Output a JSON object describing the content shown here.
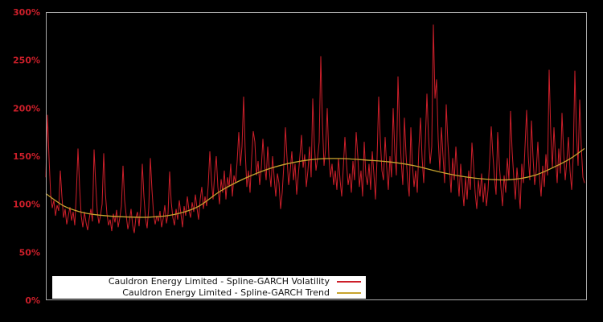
{
  "figure": {
    "background": "#000000",
    "plot_border_color": "#a9a9a9"
  },
  "chart_data": {
    "type": "line",
    "title": "",
    "xlabel": "",
    "ylabel": "",
    "grid": false,
    "y_axis": {
      "range": [
        0,
        300
      ],
      "tick_values": [
        0,
        50,
        100,
        150,
        200,
        250,
        300
      ],
      "tick_labels": [
        "0%",
        "50%",
        "100%",
        "150%",
        "200%",
        "250%",
        "300%"
      ],
      "label_color": "#cd1f2a"
    },
    "x_axis": {
      "tick_labels": []
    },
    "legend": {
      "position": "bottom-left",
      "background": "#ffffff",
      "entries": [
        {
          "label": "Cauldron Energy Limited - Spline-GARCH Volatility",
          "color": "#cd1f2a"
        },
        {
          "label": "Cauldron Energy Limited - Spline-GARCH Trend",
          "color": "#c8a42e"
        }
      ]
    },
    "series": [
      {
        "name": "Cauldron Energy Limited - Spline-GARCH Volatility",
        "style": "jagged-line",
        "color": "#cd1f2a",
        "unit": "%",
        "values": [
          128,
          193,
          148,
          110,
          96,
          104,
          88,
          99,
          93,
          135,
          108,
          86,
          95,
          79,
          88,
          97,
          83,
          92,
          78,
          112,
          158,
          118,
          88,
          76,
          92,
          81,
          73,
          85,
          95,
          82,
          157,
          122,
          92,
          80,
          88,
          100,
          153,
          112,
          90,
          78,
          84,
          72,
          90,
          81,
          94,
          76,
          86,
          98,
          140,
          104,
          88,
          74,
          82,
          95,
          78,
          70,
          86,
          92,
          77,
          98,
          142,
          108,
          85,
          75,
          96,
          148,
          115,
          90,
          79,
          88,
          82,
          93,
          76,
          85,
          99,
          80,
          90,
          134,
          102,
          86,
          78,
          95,
          84,
          104,
          90,
          76,
          98,
          88,
          108,
          94,
          86,
          102,
          92,
          110,
          96,
          84,
          105,
          118,
          95,
          108,
          98,
          120,
          155,
          125,
          105,
          132,
          150,
          118,
          100,
          126,
          112,
          135,
          105,
          128,
          118,
          142,
          108,
          130,
          122,
          145,
          175,
          140,
          160,
          212,
          155,
          118,
          135,
          112,
          148,
          176,
          165,
          130,
          145,
          120,
          138,
          168,
          142,
          125,
          160,
          135,
          118,
          150,
          128,
          108,
          132,
          122,
          95,
          112,
          140,
          180,
          148,
          120,
          135,
          155,
          125,
          142,
          110,
          130,
          150,
          172,
          138,
          152,
          118,
          135,
          160,
          128,
          210,
          162,
          135,
          148,
          165,
          254,
          185,
          140,
          158,
          200,
          150,
          128,
          142,
          120,
          135,
          115,
          148,
          125,
          108,
          138,
          170,
          142,
          120,
          132,
          112,
          145,
          125,
          175,
          150,
          118,
          135,
          108,
          165,
          130,
          120,
          142,
          115,
          155,
          132,
          105,
          148,
          212,
          168,
          135,
          125,
          170,
          138,
          115,
          150,
          128,
          200,
          155,
          130,
          233,
          180,
          145,
          120,
          190,
          152,
          125,
          108,
          180,
          140,
          118,
          135,
          112,
          158,
          190,
          148,
          122,
          165,
          215,
          170,
          142,
          160,
          287,
          210,
          230,
          168,
          135,
          180,
          150,
          122,
          204,
          165,
          138,
          112,
          148,
          125,
          160,
          132,
          108,
          142,
          118,
          98,
          128,
          105,
          135,
          115,
          164,
          140,
          112,
          95,
          125,
          108,
          132,
          102,
          122,
          98,
          115,
          145,
          181,
          152,
          128,
          110,
          175,
          142,
          118,
          98,
          130,
          112,
          148,
          125,
          197,
          155,
          128,
          105,
          138,
          118,
          95,
          142,
          122,
          160,
          198,
          150,
          125,
          187,
          148,
          120,
          135,
          165,
          128,
          108,
          140,
          118,
          152,
          130,
          240,
          175,
          138,
          180,
          148,
          122,
          158,
          132,
          195,
          155,
          125,
          145,
          170,
          135,
          115,
          150,
          239,
          175,
          140,
          209,
          160,
          128,
          122
        ]
      },
      {
        "name": "Cauldron Energy Limited - Spline-GARCH Trend",
        "style": "smooth-spline",
        "color": "#c8a42e",
        "unit": "%",
        "control_points": [
          [
            0.0,
            111
          ],
          [
            0.034,
            98
          ],
          [
            0.064,
            92
          ],
          [
            0.094,
            89
          ],
          [
            0.139,
            87
          ],
          [
            0.191,
            86.5
          ],
          [
            0.236,
            89
          ],
          [
            0.281,
            97
          ],
          [
            0.325,
            114
          ],
          [
            0.37,
            127
          ],
          [
            0.415,
            137
          ],
          [
            0.46,
            143.5
          ],
          [
            0.504,
            147
          ],
          [
            0.549,
            147.5
          ],
          [
            0.594,
            146
          ],
          [
            0.639,
            144
          ],
          [
            0.684,
            140
          ],
          [
            0.728,
            134
          ],
          [
            0.773,
            129
          ],
          [
            0.818,
            126
          ],
          [
            0.863,
            125.5
          ],
          [
            0.907,
            130
          ],
          [
            0.945,
            139
          ],
          [
            0.975,
            148
          ],
          [
            1.0,
            158
          ]
        ]
      }
    ]
  }
}
